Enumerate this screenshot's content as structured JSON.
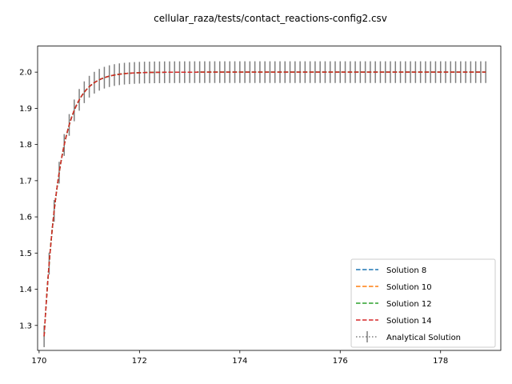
{
  "chart_data": {
    "type": "line",
    "title": "cellular_raza/tests/contact_reactions-config2.csv",
    "xlabel": "",
    "ylabel": "",
    "xlim": [
      169.97,
      179.2
    ],
    "ylim": [
      1.231,
      2.072
    ],
    "xticks": [
      170,
      172,
      174,
      176,
      178
    ],
    "xtick_labels": [
      "170",
      "172",
      "174",
      "176",
      "178"
    ],
    "yticks": [
      1.3,
      1.4,
      1.5,
      1.6,
      1.7,
      1.8,
      1.9,
      2.0
    ],
    "ytick_labels": [
      "1.3",
      "1.4",
      "1.5",
      "1.6",
      "1.7",
      "1.8",
      "1.9",
      "2.0"
    ],
    "grid": false,
    "legend_position": "lower-right",
    "model": {
      "x_start": 170.1,
      "x_end": 178.9,
      "y_start": 1.27,
      "y_asymptote": 2.0,
      "decay_rate": 3.22,
      "errorbar_x_step": 0.1,
      "errorbar_half_width": 0.03
    },
    "series": [
      {
        "name": "Solution 8",
        "color": "#1f77b4",
        "style": "dashed"
      },
      {
        "name": "Solution 10",
        "color": "#ff7f0e",
        "style": "dashed"
      },
      {
        "name": "Solution 12",
        "color": "#2ca02c",
        "style": "dashed"
      },
      {
        "name": "Solution 14",
        "color": "#d62728",
        "style": "dashed"
      },
      {
        "name": "Analytical Solution",
        "color": "#7f7f7f",
        "style": "dotted",
        "errorbars": true
      }
    ]
  }
}
